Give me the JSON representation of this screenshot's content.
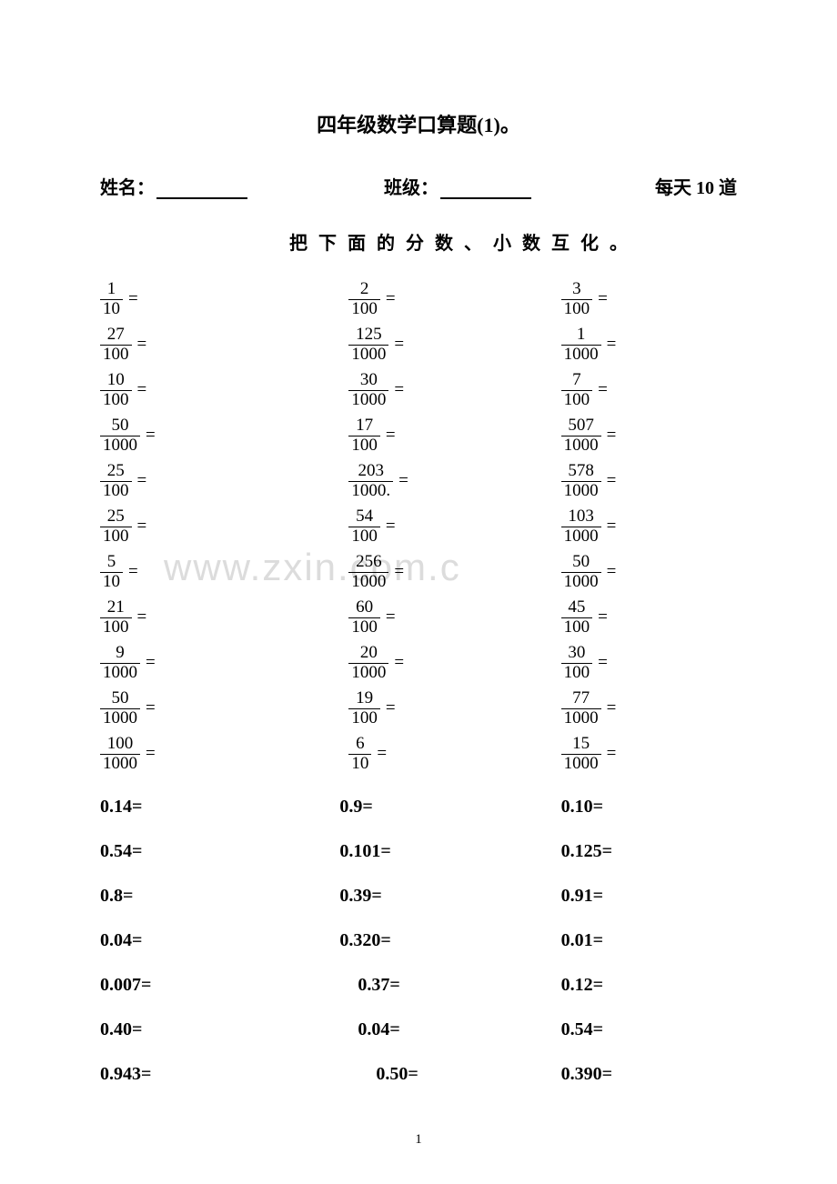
{
  "title": "四年级数学口算题(1)。",
  "header": {
    "name_label": "姓名：",
    "class_label": "班级：",
    "note": "每天 10 道"
  },
  "instruction": "把下面的分数、小数互化。",
  "fractions": [
    [
      {
        "n": "1",
        "d": "10"
      },
      {
        "n": "2",
        "d": "100"
      },
      {
        "n": "3",
        "d": "100"
      }
    ],
    [
      {
        "n": "27",
        "d": "100"
      },
      {
        "n": "125",
        "d": "1000"
      },
      {
        "n": "1",
        "d": "1000"
      }
    ],
    [
      {
        "n": "10",
        "d": "100"
      },
      {
        "n": "30",
        "d": "1000"
      },
      {
        "n": "7",
        "d": "100"
      }
    ],
    [
      {
        "n": "50",
        "d": "1000"
      },
      {
        "n": "17",
        "d": "100"
      },
      {
        "n": "507",
        "d": "1000"
      }
    ],
    [
      {
        "n": "25",
        "d": "100"
      },
      {
        "n": "203",
        "d": "1000."
      },
      {
        "n": "578",
        "d": "1000"
      }
    ],
    [
      {
        "n": "25",
        "d": "100"
      },
      {
        "n": "54",
        "d": "100"
      },
      {
        "n": "103",
        "d": "1000"
      }
    ],
    [
      {
        "n": "5",
        "d": "10"
      },
      {
        "n": "256",
        "d": "1000"
      },
      {
        "n": "50",
        "d": "1000"
      }
    ],
    [
      {
        "n": "21",
        "d": "100"
      },
      {
        "n": "60",
        "d": "100"
      },
      {
        "n": "45",
        "d": "100"
      }
    ],
    [
      {
        "n": "9",
        "d": "1000"
      },
      {
        "n": "20",
        "d": "1000"
      },
      {
        "n": "30",
        "d": "100"
      }
    ],
    [
      {
        "n": "50",
        "d": "1000"
      },
      {
        "n": "19",
        "d": "100"
      },
      {
        "n": "77",
        "d": "1000"
      }
    ],
    [
      {
        "n": "100",
        "d": "1000"
      },
      {
        "n": "6",
        "d": "10"
      },
      {
        "n": "15",
        "d": "1000"
      }
    ]
  ],
  "decimals": [
    [
      "0.14=",
      "0.9=",
      "0.10="
    ],
    [
      "0.54=",
      "0.101=",
      "0.125="
    ],
    [
      "0.8=",
      "0.39=",
      "0.91="
    ],
    [
      "0.04=",
      "0.320=",
      "0.01="
    ],
    [
      "0.007=",
      "0.37=",
      "0.12="
    ],
    [
      "0.40=",
      "0.04=",
      "0.54="
    ],
    [
      "0.943=",
      "0.50=",
      "0.390="
    ]
  ],
  "watermark": "www.zxin.com.c",
  "page_number": "1",
  "colors": {
    "background": "#ffffff",
    "text": "#000000",
    "watermark": "#dcdcdc"
  }
}
